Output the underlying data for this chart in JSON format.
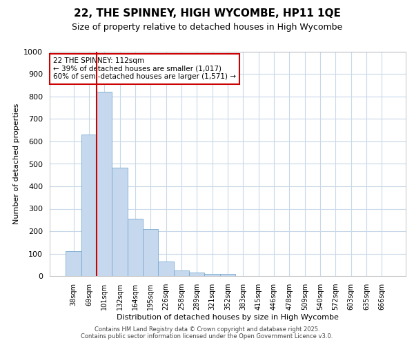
{
  "title1": "22, THE SPINNEY, HIGH WYCOMBE, HP11 1QE",
  "title2": "Size of property relative to detached houses in High Wycombe",
  "xlabel": "Distribution of detached houses by size in High Wycombe",
  "ylabel": "Number of detached properties",
  "categories": [
    "38sqm",
    "69sqm",
    "101sqm",
    "132sqm",
    "164sqm",
    "195sqm",
    "226sqm",
    "258sqm",
    "289sqm",
    "321sqm",
    "352sqm",
    "383sqm",
    "415sqm",
    "446sqm",
    "478sqm",
    "509sqm",
    "540sqm",
    "572sqm",
    "603sqm",
    "635sqm",
    "666sqm"
  ],
  "values": [
    110,
    632,
    820,
    483,
    254,
    209,
    65,
    26,
    15,
    10,
    8,
    0,
    0,
    0,
    0,
    0,
    0,
    0,
    0,
    0,
    0
  ],
  "bar_color": "#c5d8ee",
  "bar_edge_color": "#7aaad0",
  "vline_x_index": 2,
  "vline_color": "#cc0000",
  "annotation_text": "22 THE SPINNEY: 112sqm\n← 39% of detached houses are smaller (1,017)\n60% of semi-detached houses are larger (1,571) →",
  "annotation_box_color": "#ffffff",
  "annotation_edge_color": "#cc0000",
  "ylim": [
    0,
    1000
  ],
  "yticks": [
    0,
    100,
    200,
    300,
    400,
    500,
    600,
    700,
    800,
    900,
    1000
  ],
  "bg_color": "#ffffff",
  "plot_bg_color": "#ffffff",
  "grid_color": "#c8d8e8",
  "footer": "Contains HM Land Registry data © Crown copyright and database right 2025.\nContains public sector information licensed under the Open Government Licence v3.0."
}
